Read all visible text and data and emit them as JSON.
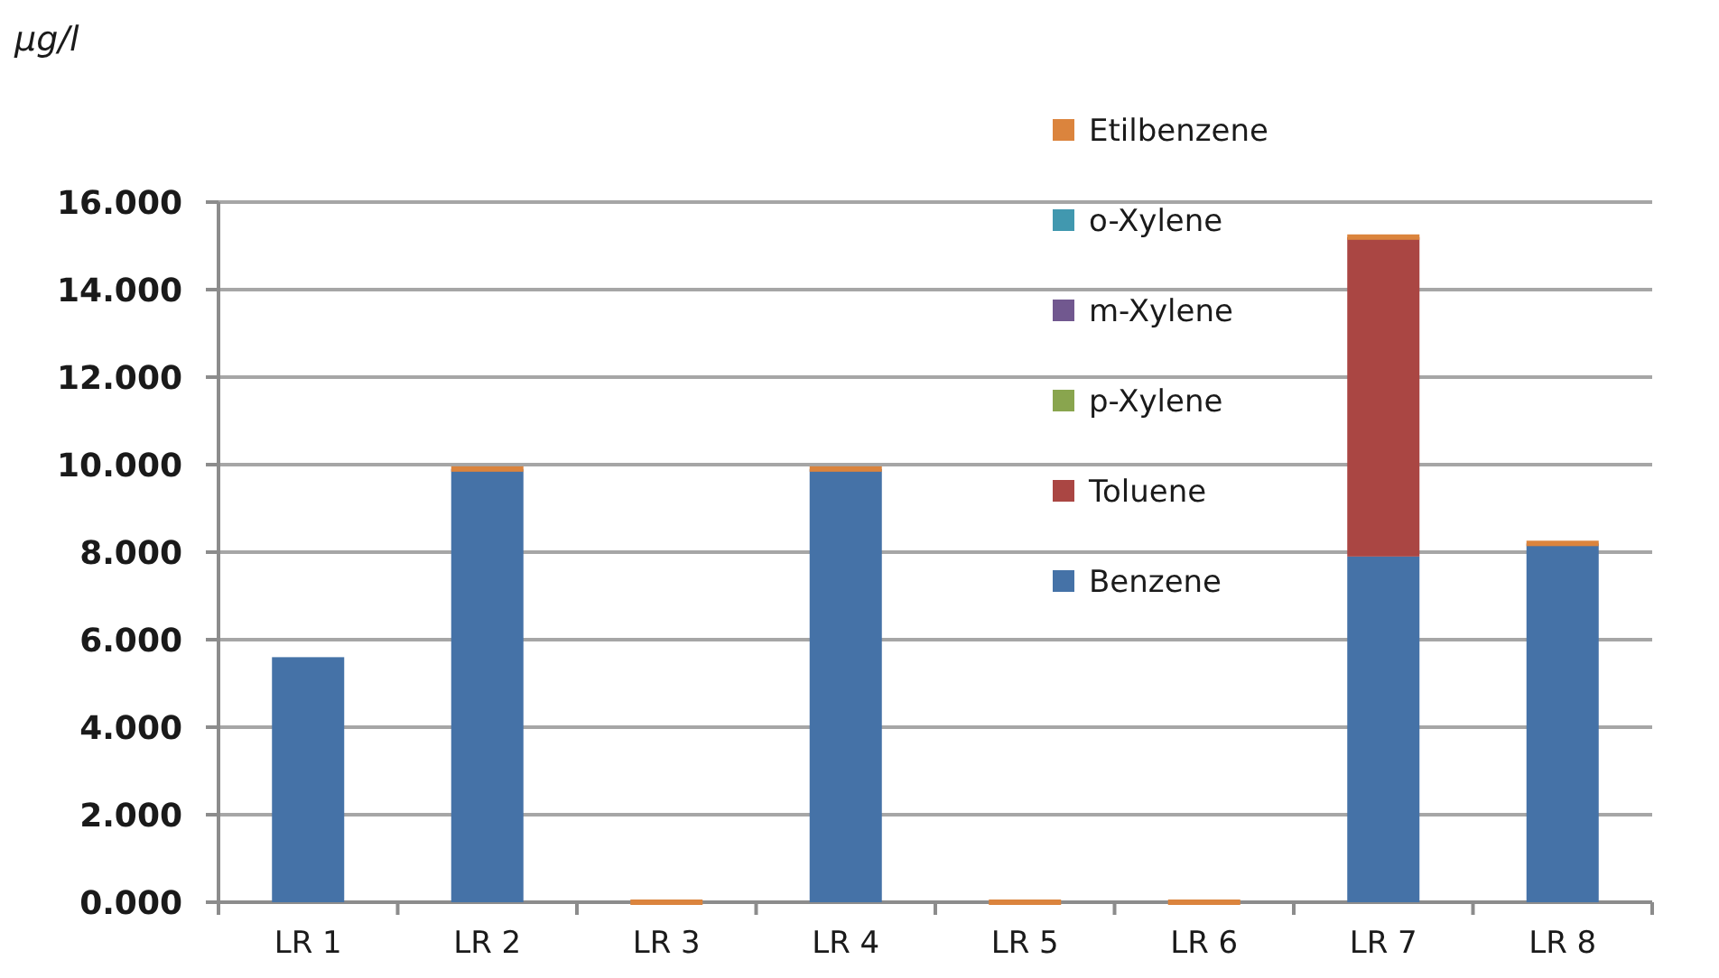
{
  "chart_data": {
    "type": "bar",
    "ylabel": "µg/l",
    "categories": [
      "LR 1",
      "LR 2",
      "LR 3",
      "LR 4",
      "LR 5",
      "LR 6",
      "LR 7",
      "LR 8"
    ],
    "stacked": true,
    "series": [
      {
        "name": "Benzene",
        "color": "#4572a7",
        "values": [
          5.6,
          9.9,
          null,
          9.9,
          null,
          null,
          7.9,
          8.2
        ]
      },
      {
        "name": "Toluene",
        "color": "#aa4643",
        "values": [
          null,
          null,
          null,
          null,
          null,
          null,
          7.3,
          null
        ]
      },
      {
        "name": "p-Xylene",
        "color": "#89a54e",
        "values": [
          null,
          null,
          null,
          null,
          null,
          null,
          null,
          null
        ]
      },
      {
        "name": "m-Xylene",
        "color": "#71588f",
        "values": [
          null,
          null,
          null,
          null,
          null,
          null,
          null,
          null
        ]
      },
      {
        "name": "o-Xylene",
        "color": "#4198af",
        "values": [
          null,
          null,
          null,
          null,
          null,
          null,
          null,
          null
        ]
      },
      {
        "name": "Etilbenzene",
        "color": "#db843d",
        "values": [
          null,
          0,
          0,
          0,
          0,
          0,
          0,
          0
        ]
      }
    ],
    "ylim": [
      0,
      16
    ],
    "yticks": [
      {
        "value": 0,
        "label": "0.000"
      },
      {
        "value": 2,
        "label": "2.000"
      },
      {
        "value": 4,
        "label": "4.000"
      },
      {
        "value": 6,
        "label": "6.000"
      },
      {
        "value": 8,
        "label": "8.000"
      },
      {
        "value": 10,
        "label": "10.000"
      },
      {
        "value": 12,
        "label": "12.000"
      },
      {
        "value": 14,
        "label": "14.000"
      },
      {
        "value": 16,
        "label": "16.000"
      }
    ],
    "grid": "y",
    "legend": "top right"
  }
}
